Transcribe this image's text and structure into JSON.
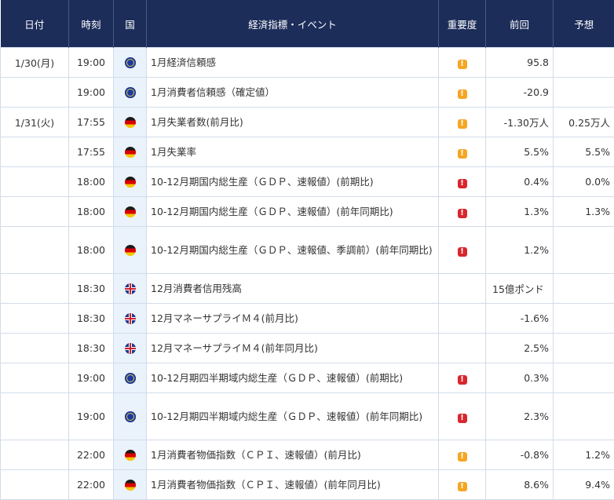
{
  "headers": {
    "date": "日付",
    "time": "時刻",
    "country": "国",
    "event": "経済指標・イベント",
    "importance": "重要度",
    "previous": "前回",
    "forecast": "予想"
  },
  "importance_mark": "!",
  "colors": {
    "header_bg": "#1c2d5a",
    "importance_mid": "#f5a623",
    "importance_high": "#d9262e",
    "flag_cell_bg": "#eaf2fc"
  },
  "rows": [
    {
      "date": "1/30(月)",
      "time": "19:00",
      "country_icon": "eu-flag-icon",
      "event": "1月経済信頼感",
      "importance": "mid",
      "previous": "95.8",
      "forecast": ""
    },
    {
      "date": "",
      "time": "19:00",
      "country_icon": "eu-flag-icon",
      "event": "1月消費者信頼感（確定値）",
      "importance": "mid",
      "previous": "-20.9",
      "forecast": ""
    },
    {
      "date": "1/31(火)",
      "time": "17:55",
      "country_icon": "germany-flag-icon",
      "event": "1月失業者数(前月比)",
      "importance": "mid",
      "previous": "-1.30万人",
      "forecast": "0.25万人"
    },
    {
      "date": "",
      "time": "17:55",
      "country_icon": "germany-flag-icon",
      "event": "1月失業率",
      "importance": "mid",
      "previous": "5.5%",
      "forecast": "5.5%"
    },
    {
      "date": "",
      "time": "18:00",
      "country_icon": "germany-flag-icon",
      "event": "10-12月期国内総生産（ＧＤＰ、速報値）(前期比)",
      "importance": "high",
      "previous": "0.4%",
      "forecast": "0.0%"
    },
    {
      "date": "",
      "time": "18:00",
      "country_icon": "germany-flag-icon",
      "event": "10-12月期国内総生産（ＧＤＰ、速報値）(前年同期比)",
      "importance": "high",
      "previous": "1.3%",
      "forecast": "1.3%"
    },
    {
      "date": "",
      "time": "18:00",
      "country_icon": "germany-flag-icon",
      "event": "10-12月期国内総生産（ＧＤＰ、速報値、季調前）(前年同期比)",
      "importance": "high",
      "previous": "1.2%",
      "forecast": ""
    },
    {
      "date": "",
      "time": "18:30",
      "country_icon": "uk-flag-icon",
      "event": "12月消費者信用残高",
      "importance": "",
      "previous": "15億ポンド",
      "forecast": ""
    },
    {
      "date": "",
      "time": "18:30",
      "country_icon": "uk-flag-icon",
      "event": "12月マネーサプライＭ４(前月比)",
      "importance": "",
      "previous": "-1.6%",
      "forecast": ""
    },
    {
      "date": "",
      "time": "18:30",
      "country_icon": "uk-flag-icon",
      "event": "12月マネーサプライＭ４(前年同月比)",
      "importance": "",
      "previous": "2.5%",
      "forecast": ""
    },
    {
      "date": "",
      "time": "19:00",
      "country_icon": "eu-flag-icon",
      "event": "10-12月期四半期域内総生産（ＧＤＰ、速報値）(前期比)",
      "importance": "high",
      "previous": "0.3%",
      "forecast": ""
    },
    {
      "date": "",
      "time": "19:00",
      "country_icon": "eu-flag-icon",
      "event": "10-12月期四半期域内総生産（ＧＤＰ、速報値）(前年同期比)",
      "importance": "high",
      "previous": "2.3%",
      "forecast": ""
    },
    {
      "date": "",
      "time": "22:00",
      "country_icon": "germany-flag-icon",
      "event": "1月消費者物価指数（ＣＰＩ、速報値）(前月比)",
      "importance": "mid",
      "previous": "-0.8%",
      "forecast": "1.2%"
    },
    {
      "date": "",
      "time": "22:00",
      "country_icon": "germany-flag-icon",
      "event": "1月消費者物価指数（ＣＰＩ、速報値）(前年同月比)",
      "importance": "mid",
      "previous": "8.6%",
      "forecast": "9.4%"
    }
  ]
}
